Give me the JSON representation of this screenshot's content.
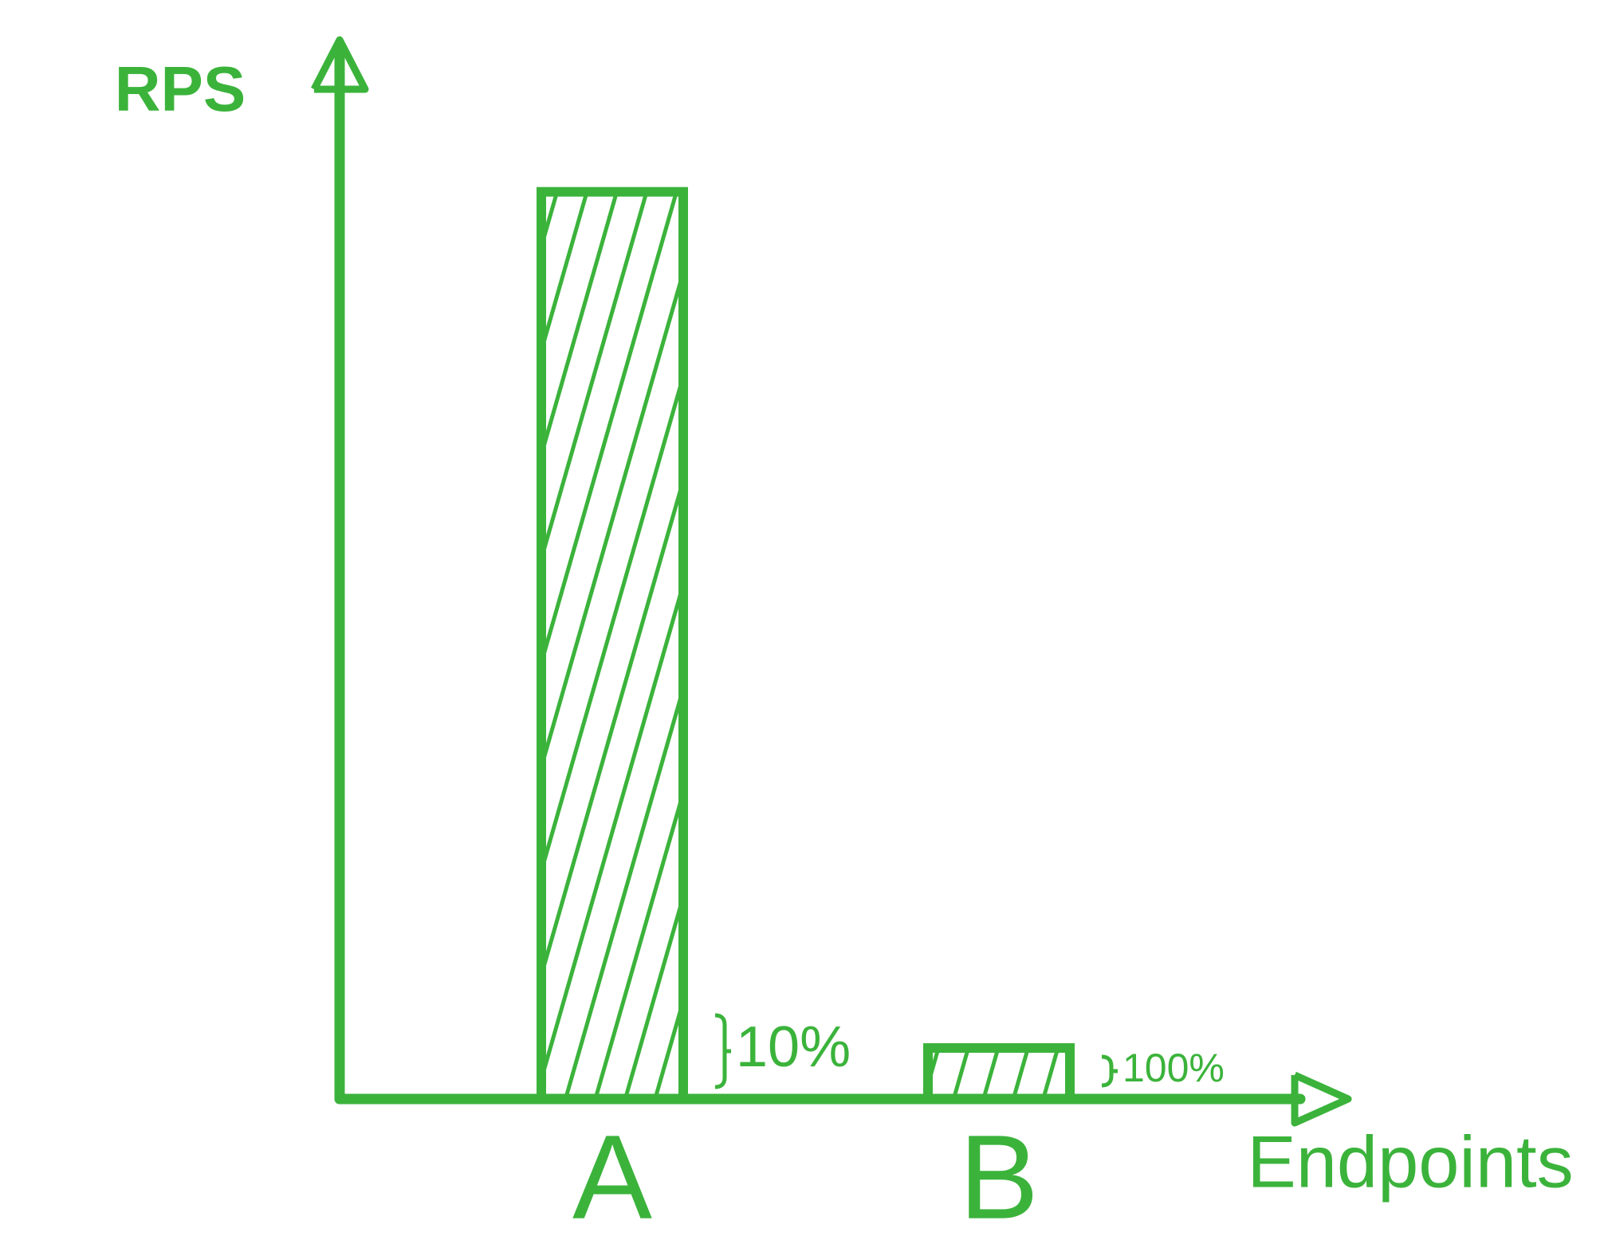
{
  "chart_data": {
    "type": "bar",
    "y_label": "RPS",
    "x_label": "Endpoints",
    "categories": [
      "A",
      "B"
    ],
    "values": [
      89,
      5
    ],
    "color": "#3bb33b",
    "annotations": [
      "10%",
      "100%"
    ],
    "ylim": [
      0,
      100
    ],
    "grid": false
  }
}
